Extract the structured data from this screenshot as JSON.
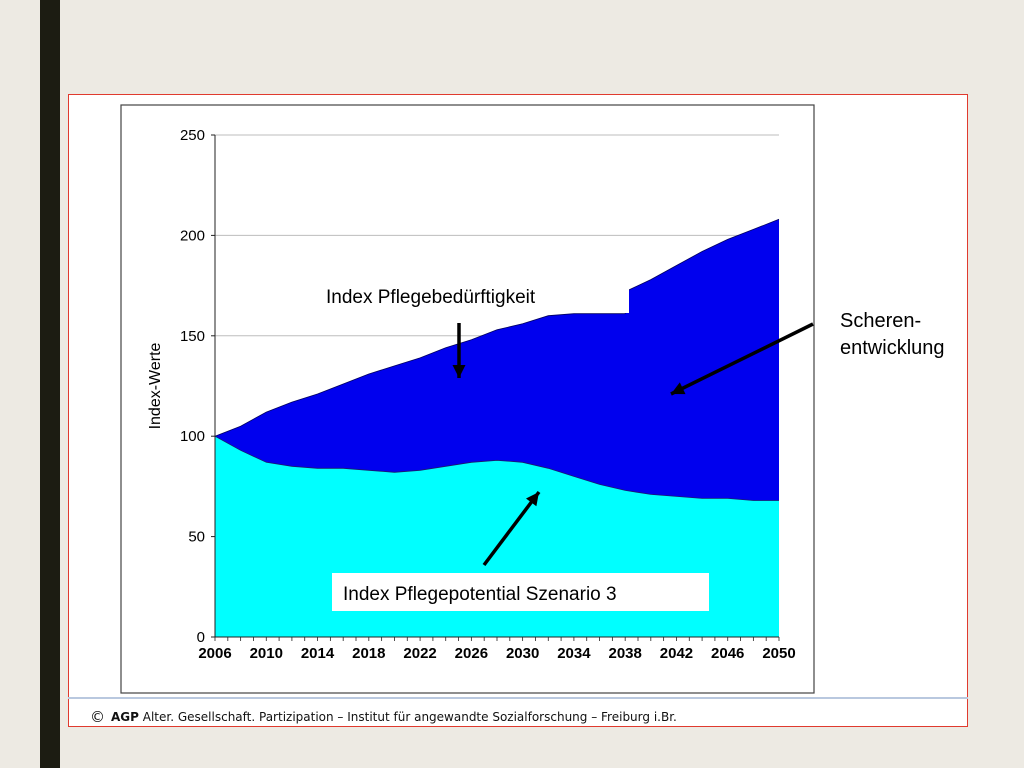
{
  "footer": {
    "symbol": "©",
    "brand": "AGP",
    "text": "Alter. Gesellschaft. Partizipation – Institut für angewandte Sozialforschung – Freiburg i.Br."
  },
  "colors": {
    "background": "#edeae3",
    "upper_area": "#0000ee",
    "lower_area": "#00ffff",
    "frame_border": "#e03a2e"
  },
  "chart_data": {
    "type": "area",
    "title": "",
    "xlabel": "",
    "ylabel": "Index-Werte",
    "xlim": [
      2006,
      2050
    ],
    "ylim": [
      0,
      250
    ],
    "yticks": [
      0,
      50,
      100,
      150,
      200,
      250
    ],
    "xticks": [
      2006,
      2010,
      2014,
      2018,
      2022,
      2026,
      2030,
      2034,
      2038,
      2042,
      2046,
      2050
    ],
    "grid": "horizontal",
    "series": [
      {
        "name": "Index Pflegebedürftigkeit",
        "color": "#0000ee",
        "points": [
          [
            2006,
            100
          ],
          [
            2008,
            105
          ],
          [
            2010,
            112
          ],
          [
            2012,
            117
          ],
          [
            2014,
            121
          ],
          [
            2016,
            126
          ],
          [
            2018,
            131
          ],
          [
            2020,
            135
          ],
          [
            2022,
            139
          ],
          [
            2024,
            144
          ],
          [
            2026,
            148
          ],
          [
            2028,
            153
          ],
          [
            2030,
            156
          ],
          [
            2032,
            160
          ],
          [
            2034,
            161
          ],
          [
            2036,
            161
          ],
          [
            2038,
            161
          ],
          [
            2038,
            172
          ],
          [
            2040,
            178
          ],
          [
            2042,
            185
          ],
          [
            2044,
            192
          ],
          [
            2046,
            198
          ],
          [
            2048,
            203
          ],
          [
            2050,
            208
          ]
        ]
      },
      {
        "name": "Index Pflegepotential Szenario 3",
        "color": "#00ffff",
        "points": [
          [
            2006,
            100
          ],
          [
            2008,
            93
          ],
          [
            2010,
            87
          ],
          [
            2012,
            85
          ],
          [
            2014,
            84
          ],
          [
            2016,
            84
          ],
          [
            2018,
            83
          ],
          [
            2020,
            82
          ],
          [
            2022,
            83
          ],
          [
            2024,
            85
          ],
          [
            2026,
            87
          ],
          [
            2028,
            88
          ],
          [
            2030,
            87
          ],
          [
            2032,
            84
          ],
          [
            2034,
            80
          ],
          [
            2036,
            76
          ],
          [
            2038,
            73
          ],
          [
            2040,
            71
          ],
          [
            2042,
            70
          ],
          [
            2044,
            69
          ],
          [
            2046,
            69
          ],
          [
            2048,
            68
          ],
          [
            2050,
            68
          ]
        ]
      }
    ],
    "annotations": [
      {
        "id": "pflegebeduerftigkeit",
        "text": "Index Pflegebedürftigkeit"
      },
      {
        "id": "pflegepotential",
        "text": "Index Pflegepotential Szenario 3"
      },
      {
        "id": "scheren-line1",
        "text": "Scheren-"
      },
      {
        "id": "scheren-line2",
        "text": "entwicklung"
      }
    ]
  }
}
